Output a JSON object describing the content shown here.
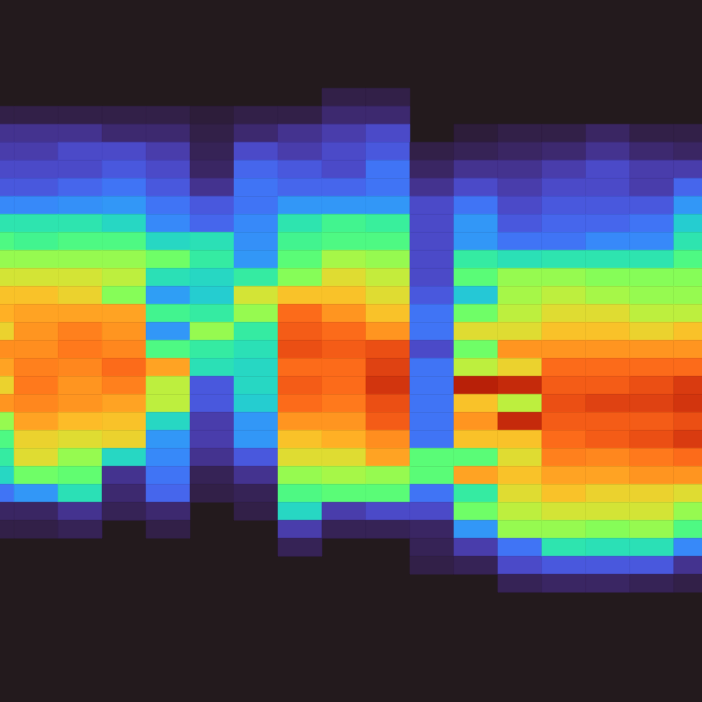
{
  "chart_data": {
    "type": "heatmap",
    "x": [
      0,
      1,
      2,
      3,
      4,
      5,
      6,
      7,
      8,
      9,
      10,
      11,
      12,
      13,
      14,
      15,
      16
    ],
    "y": [
      0,
      1,
      2,
      3,
      4,
      5,
      6,
      7,
      8,
      9,
      10,
      11,
      12,
      13,
      14,
      15,
      16,
      17,
      18,
      19,
      20,
      21,
      22,
      23,
      24,
      25,
      26,
      27,
      28
    ],
    "xlim": [
      0.18,
      16.14
    ],
    "ylim": [
      -5.4,
      33.6
    ],
    "clim": [
      0,
      1
    ],
    "tick_labels": false,
    "cells": [
      [
        null,
        0.015,
        0.045,
        0.06,
        0.08,
        0.1,
        0.17,
        0.33,
        0.4,
        0.5,
        0.58,
        0.65,
        0.68,
        0.62,
        0.73,
        0.7,
        0.62,
        0.72,
        0.5,
        0.4,
        0.35,
        0.3,
        0.14,
        0.025,
        0.015,
        null,
        null,
        null,
        null
      ],
      [
        null,
        0.015,
        0.045,
        0.06,
        0.08,
        0.1,
        0.17,
        0.33,
        0.38,
        0.5,
        0.58,
        0.65,
        0.7,
        0.72,
        0.73,
        0.75,
        0.76,
        0.74,
        0.7,
        0.62,
        0.6,
        0.45,
        0.19,
        0.025,
        0.015,
        null,
        null,
        null,
        null
      ],
      [
        null,
        0.015,
        0.045,
        0.08,
        0.08,
        0.12,
        0.18,
        0.33,
        0.4,
        0.5,
        0.58,
        0.62,
        0.7,
        0.75,
        0.76,
        0.74,
        0.72,
        0.72,
        0.66,
        0.6,
        0.5,
        0.43,
        0.32,
        0.045,
        0.02,
        null,
        null,
        null,
        null
      ],
      [
        null,
        0.015,
        0.03,
        0.08,
        0.1,
        0.14,
        0.19,
        0.3,
        0.4,
        0.5,
        0.55,
        0.48,
        0.7,
        0.72,
        0.74,
        0.78,
        0.75,
        0.7,
        0.65,
        0.62,
        0.3,
        0.045,
        0.03,
        0.02,
        null,
        null,
        null,
        null,
        null
      ],
      [
        null,
        0.015,
        0.03,
        0.06,
        0.08,
        0.1,
        0.14,
        0.17,
        0.3,
        0.45,
        0.32,
        0.2,
        0.38,
        0.19,
        0.4,
        0.7,
        0.55,
        0.55,
        0.3,
        0.19,
        0.17,
        0.14,
        0.12,
        0.03,
        0.015,
        null,
        null,
        null,
        null
      ],
      [
        null,
        0.01,
        0.015,
        0.02,
        0.025,
        0.045,
        0.1,
        0.12,
        0.32,
        0.35,
        0.3,
        0.28,
        0.35,
        0.5,
        0.35,
        0.32,
        0.1,
        0.1,
        0.06,
        0.06,
        0.045,
        0.02,
        0.015,
        null,
        null,
        null,
        null,
        null,
        null
      ],
      [
        null,
        0.015,
        0.03,
        0.08,
        0.12,
        0.14,
        0.14,
        0.17,
        0.18,
        0.19,
        0.35,
        0.58,
        0.5,
        0.35,
        0.32,
        0.3,
        0.3,
        0.28,
        0.19,
        0.19,
        0.1,
        0.045,
        0.02,
        0.015,
        null,
        null,
        null,
        null,
        null
      ],
      [
        null,
        0.015,
        0.045,
        0.06,
        0.1,
        0.12,
        0.19,
        0.33,
        0.38,
        0.42,
        0.48,
        0.65,
        0.78,
        0.8,
        0.82,
        0.78,
        0.8,
        0.78,
        0.72,
        0.65,
        0.6,
        0.5,
        0.4,
        0.3,
        0.06,
        0.02,
        null,
        null,
        null
      ],
      [
        0.015,
        0.03,
        0.06,
        0.08,
        0.08,
        0.12,
        0.19,
        0.38,
        0.4,
        0.52,
        0.6,
        0.65,
        0.72,
        0.78,
        0.8,
        0.78,
        0.78,
        0.76,
        0.72,
        0.68,
        0.6,
        0.52,
        0.42,
        0.06,
        0.02,
        null,
        null,
        null,
        null
      ],
      [
        0.015,
        0.03,
        0.08,
        0.1,
        0.14,
        0.14,
        0.19,
        0.36,
        0.4,
        0.5,
        0.56,
        0.6,
        0.65,
        0.72,
        0.82,
        0.84,
        0.86,
        0.82,
        0.8,
        0.73,
        0.7,
        0.5,
        0.42,
        0.08,
        0.02,
        null,
        null,
        null,
        null
      ],
      [
        null,
        null,
        null,
        0.015,
        0.025,
        0.045,
        0.08,
        0.08,
        0.08,
        0.08,
        0.08,
        0.1,
        0.14,
        0.14,
        0.08,
        0.14,
        0.14,
        0.14,
        0.14,
        0.14,
        0.42,
        0.42,
        0.14,
        0.08,
        0.025,
        0.02,
        0.015,
        null,
        null
      ],
      [
        null,
        null,
        0.01,
        0.02,
        0.045,
        0.08,
        0.14,
        0.19,
        0.19,
        0.35,
        0.42,
        0.27,
        0.45,
        0.6,
        0.45,
        0.55,
        0.9,
        0.65,
        0.72,
        0.65,
        0.42,
        0.7,
        0.35,
        0.45,
        0.19,
        0.06,
        0.02,
        null,
        null
      ],
      [
        null,
        null,
        0.015,
        0.025,
        0.045,
        0.06,
        0.08,
        0.1,
        0.14,
        0.32,
        0.5,
        0.52,
        0.55,
        0.6,
        0.72,
        0.62,
        0.88,
        0.55,
        0.88,
        0.65,
        0.6,
        0.65,
        0.6,
        0.55,
        0.5,
        0.14,
        0.08,
        0.02,
        null
      ],
      [
        null,
        null,
        0.015,
        0.03,
        0.06,
        0.08,
        0.1,
        0.12,
        0.14,
        0.33,
        0.5,
        0.55,
        0.6,
        0.65,
        0.72,
        0.78,
        0.8,
        0.82,
        0.8,
        0.78,
        0.75,
        0.7,
        0.65,
        0.58,
        0.5,
        0.33,
        0.1,
        0.025,
        null
      ],
      [
        null,
        null,
        0.025,
        0.045,
        0.08,
        0.08,
        0.1,
        0.12,
        0.17,
        0.33,
        0.48,
        0.52,
        0.6,
        0.65,
        0.72,
        0.78,
        0.8,
        0.84,
        0.8,
        0.8,
        0.74,
        0.7,
        0.62,
        0.58,
        0.48,
        0.32,
        0.1,
        0.025,
        null
      ],
      [
        null,
        null,
        0.015,
        0.03,
        0.06,
        0.06,
        0.1,
        0.14,
        0.17,
        0.33,
        0.48,
        0.5,
        0.55,
        0.62,
        0.72,
        0.78,
        0.82,
        0.84,
        0.8,
        0.82,
        0.76,
        0.72,
        0.62,
        0.58,
        0.5,
        0.32,
        0.1,
        0.02,
        null
      ],
      [
        null,
        null,
        0.015,
        0.025,
        0.06,
        0.12,
        0.19,
        0.28,
        0.33,
        0.4,
        0.48,
        0.5,
        0.55,
        0.65,
        0.72,
        0.78,
        0.85,
        0.86,
        0.82,
        0.85,
        0.78,
        0.72,
        0.6,
        0.5,
        0.4,
        0.17,
        0.045,
        0.015,
        null
      ]
    ]
  }
}
